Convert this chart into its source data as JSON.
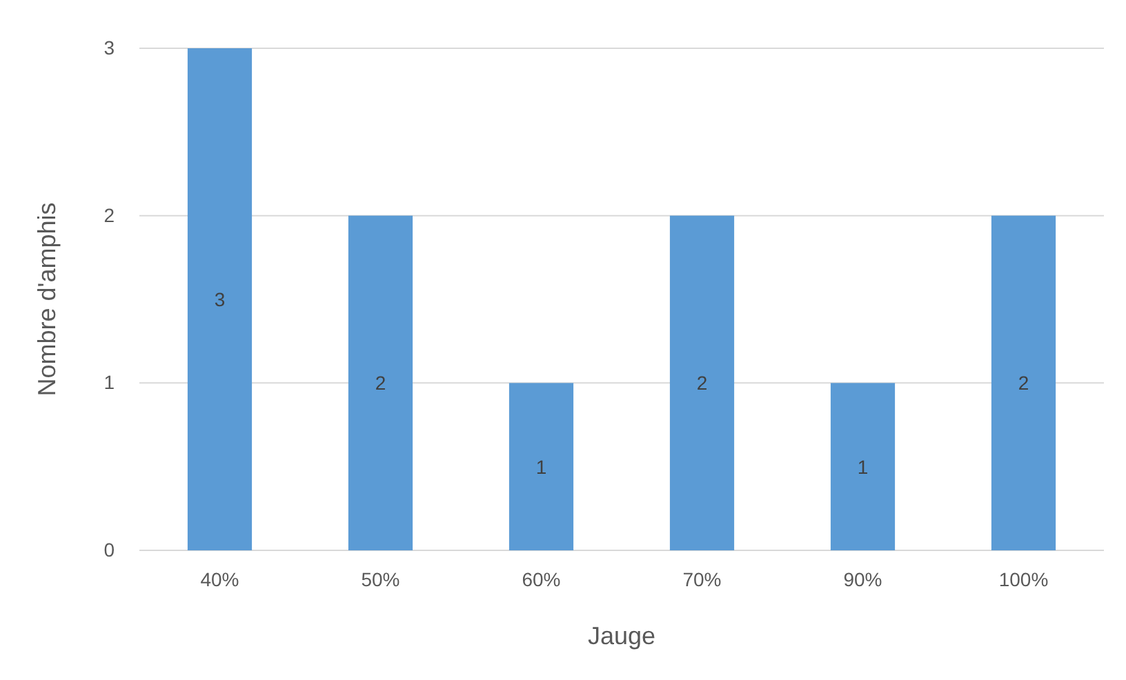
{
  "chart_data": {
    "type": "bar",
    "xlabel": "Jauge",
    "ylabel": "Nombre d'amphis",
    "categories": [
      "40%",
      "50%",
      "60%",
      "70%",
      "90%",
      "100%"
    ],
    "values": [
      3,
      2,
      1,
      2,
      1,
      2
    ],
    "color": "#5b9bd5",
    "ylim": [
      0,
      3
    ],
    "yticks": [
      0,
      1,
      2,
      3
    ],
    "grid": "y",
    "data_labels": true
  }
}
